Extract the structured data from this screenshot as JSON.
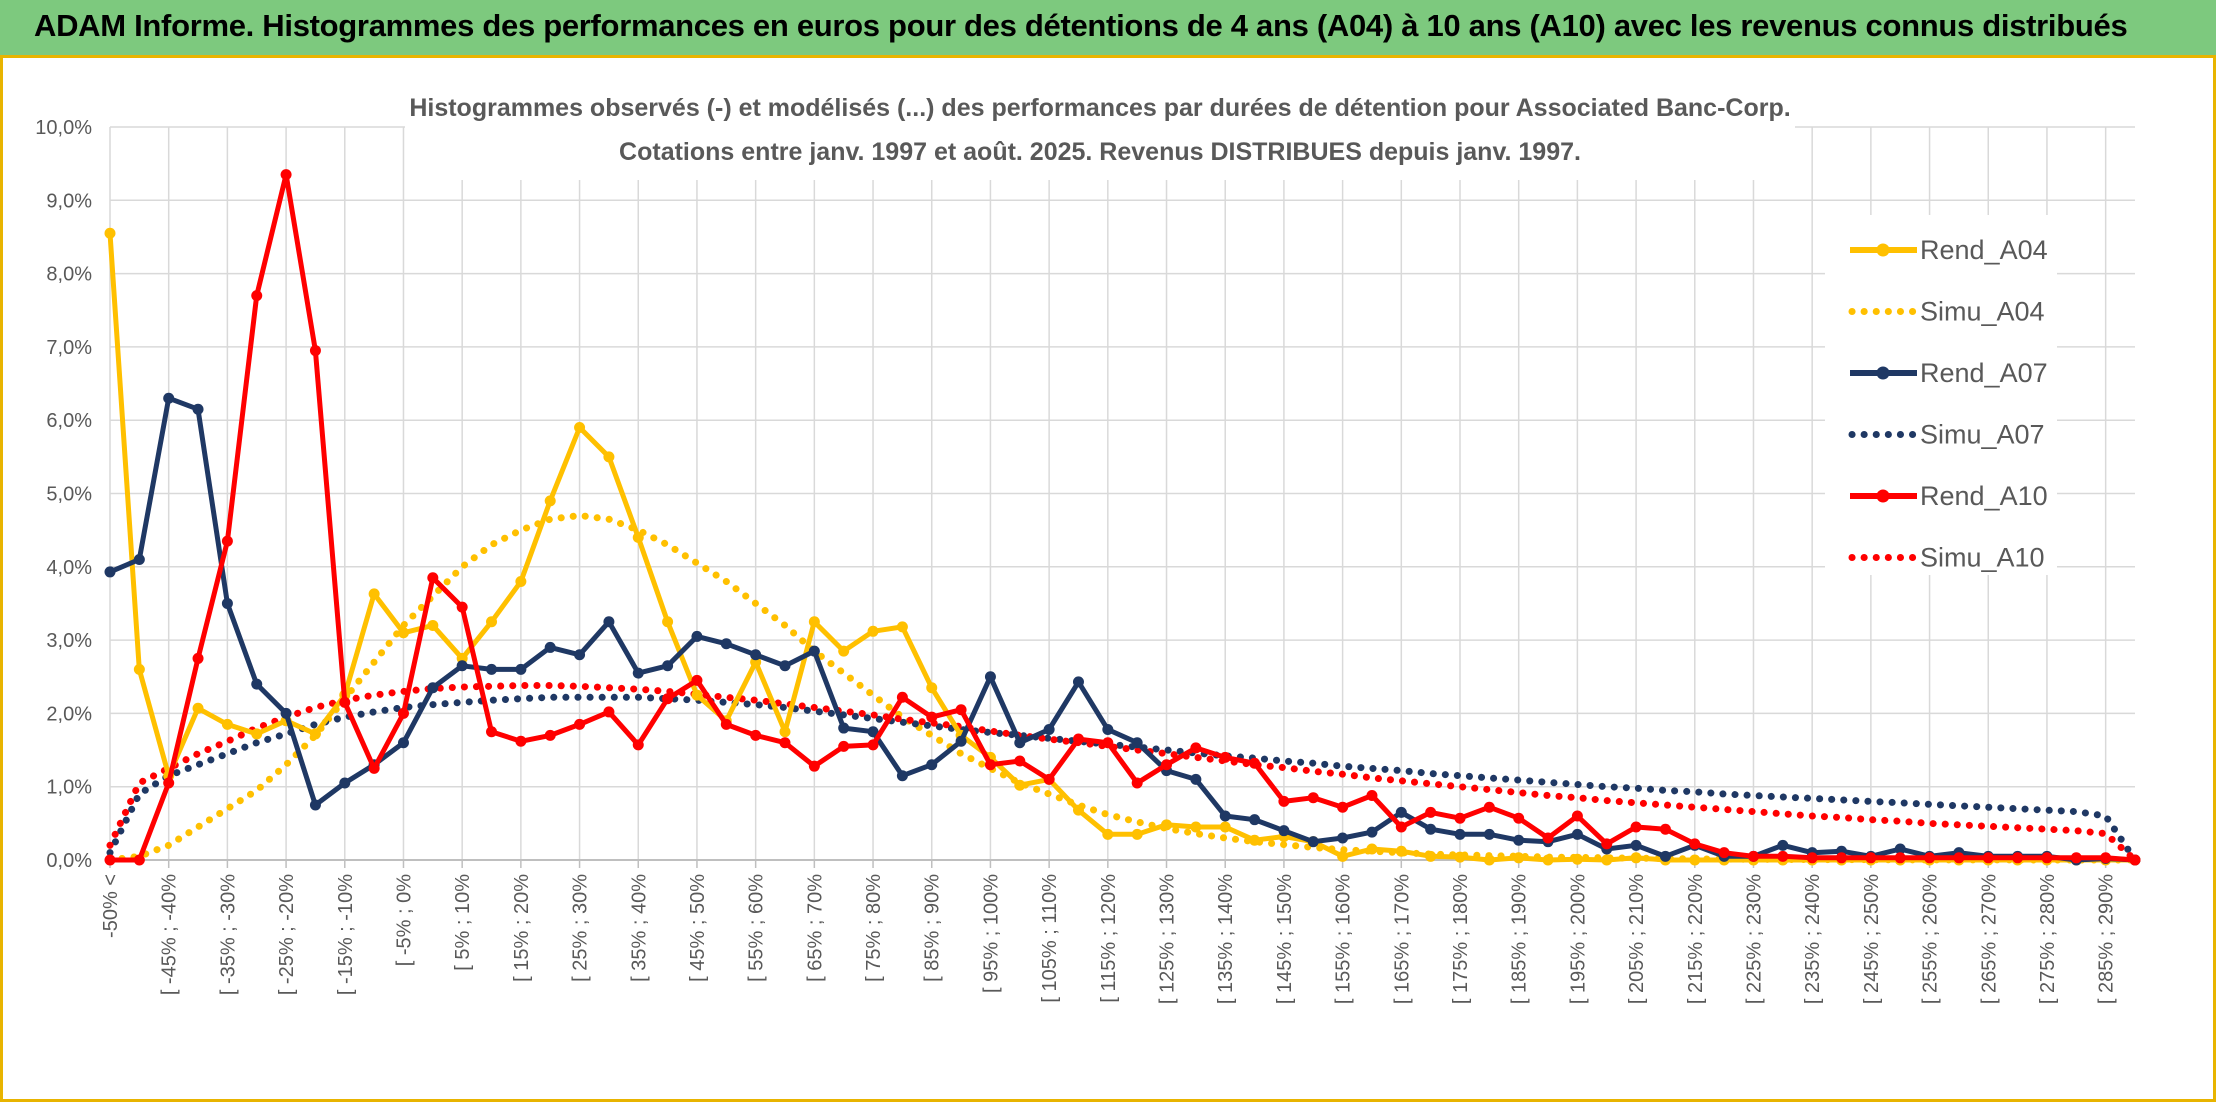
{
  "banner": {
    "title": "ADAM Informe. Histogrammes des performances en euros pour des détentions de 4 ans (A04) à 10 ans (A10) avec les revenus connus distribués"
  },
  "colors": {
    "a04": "#ffc000",
    "a07": "#1f3864",
    "a10": "#ff0000",
    "grid": "#d9d9d9",
    "banner": "#7dc97e",
    "frame": "#e8b400"
  },
  "chart_data": {
    "type": "line",
    "title": "Histogrammes observés (-) et modélisés (...) des performances par durées de détention pour Associated Banc-Corp.",
    "subtitle": "Cotations entre janv. 1997 et août. 2025. Revenus DISTRIBUES depuis janv. 1997.",
    "ylim": [
      0,
      10
    ],
    "y_ticks": [
      "0,0%",
      "1,0%",
      "2,0%",
      "3,0%",
      "4,0%",
      "5,0%",
      "6,0%",
      "7,0%",
      "8,0%",
      "9,0%",
      "10,0%"
    ],
    "grid": true,
    "legend_position": "right",
    "x_tick_labels": [
      "-50% <",
      "[ -45% ; -40%",
      "[ -35% ; -30%",
      "[ -25% ; -20%",
      "[ -15% ; -10%",
      "[ -5% ; 0%",
      "[ 5% ; 10%",
      "[ 15% ; 20%",
      "[ 25% ; 30%",
      "[ 35% ; 40%",
      "[ 45% ; 50%",
      "[ 55% ; 60%",
      "[ 65% ; 70%",
      "[ 75% ; 80%",
      "[ 85% ; 90%",
      "[ 95% ; 100%",
      "[ 105% ; 110%",
      "[ 115% ; 120%",
      "[ 125% ; 130%",
      "[ 135% ; 140%",
      "[ 145% ; 150%",
      "[ 155% ; 160%",
      "[ 165% ; 170%",
      "[ 175% ; 180%",
      "[ 185% ; 190%",
      "[ 195% ; 200%",
      "[ 205% ; 210%",
      "[ 215% ; 220%",
      "[ 225% ; 230%",
      "[ 235% ; 240%",
      "[ 245% ; 250%",
      "[ 255% ; 260%",
      "[ 265% ; 270%",
      "[ 275% ; 280%",
      "[ 285% ; 290%"
    ],
    "series": [
      {
        "name": "Rend_A04",
        "style": "solid",
        "color": "#ffc000",
        "values": [
          8.55,
          2.6,
          1.15,
          2.07,
          1.85,
          1.72,
          1.9,
          1.72,
          2.25,
          3.63,
          3.1,
          3.2,
          2.75,
          3.25,
          3.8,
          4.9,
          5.9,
          5.5,
          4.4,
          3.25,
          2.25,
          1.9,
          2.7,
          1.75,
          3.25,
          2.85,
          3.12,
          3.18,
          2.35,
          1.7,
          1.4,
          1.02,
          1.1,
          0.68,
          0.35,
          0.35,
          0.48,
          0.45,
          0.45,
          0.27,
          0.32,
          0.25,
          0.05,
          0.15,
          0.12,
          0.05,
          0.04,
          0.0,
          0.03,
          0.0,
          0.01,
          0.0,
          0.03,
          0.0,
          0.0,
          0.0,
          0.0,
          0.0,
          0.0,
          0.0,
          0.0,
          0.0,
          0.0,
          0.0,
          0.0,
          0.0,
          0.0,
          0.0,
          0.0,
          0.0
        ]
      },
      {
        "name": "Simu_A04",
        "style": "dotted",
        "color": "#ffc000",
        "values": [
          0.0,
          0.05,
          0.2,
          0.45,
          0.7,
          0.95,
          1.3,
          1.7,
          2.2,
          2.7,
          3.2,
          3.6,
          4.0,
          4.3,
          4.5,
          4.65,
          4.7,
          4.65,
          4.5,
          4.3,
          4.05,
          3.8,
          3.5,
          3.2,
          2.85,
          2.55,
          2.25,
          1.95,
          1.7,
          1.45,
          1.25,
          1.05,
          0.9,
          0.75,
          0.62,
          0.52,
          0.43,
          0.36,
          0.3,
          0.25,
          0.21,
          0.17,
          0.14,
          0.12,
          0.1,
          0.08,
          0.07,
          0.06,
          0.05,
          0.04,
          0.035,
          0.03,
          0.025,
          0.02,
          0.015,
          0.012,
          0.01,
          0.008,
          0.006,
          0.005,
          0.004,
          0.003,
          0.002,
          0.002,
          0.001,
          0.001,
          0.0,
          0.0,
          0.0,
          0.0
        ]
      },
      {
        "name": "Rend_A07",
        "style": "solid",
        "color": "#1f3864",
        "values": [
          3.93,
          4.1,
          6.3,
          6.15,
          3.5,
          2.4,
          2.0,
          0.75,
          1.05,
          1.3,
          1.6,
          2.35,
          2.65,
          2.6,
          2.6,
          2.9,
          2.8,
          3.25,
          2.55,
          2.65,
          3.05,
          2.95,
          2.8,
          2.65,
          2.85,
          1.8,
          1.75,
          1.15,
          1.3,
          1.62,
          2.5,
          1.6,
          1.78,
          2.43,
          1.78,
          1.6,
          1.22,
          1.1,
          0.6,
          0.55,
          0.4,
          0.25,
          0.3,
          0.38,
          0.65,
          0.42,
          0.35,
          0.35,
          0.27,
          0.25,
          0.35,
          0.15,
          0.2,
          0.05,
          0.2,
          0.05,
          0.05,
          0.2,
          0.1,
          0.12,
          0.05,
          0.15,
          0.05,
          0.1,
          0.05,
          0.05,
          0.05,
          0.0,
          0.02,
          0.0
        ]
      },
      {
        "name": "Simu_A07",
        "style": "dotted",
        "color": "#1f3864",
        "values": [
          0.1,
          0.9,
          1.15,
          1.3,
          1.45,
          1.6,
          1.72,
          1.85,
          1.95,
          2.02,
          2.08,
          2.12,
          2.15,
          2.18,
          2.2,
          2.22,
          2.22,
          2.22,
          2.22,
          2.2,
          2.18,
          2.15,
          2.12,
          2.08,
          2.03,
          1.98,
          1.93,
          1.88,
          1.83,
          1.78,
          1.74,
          1.7,
          1.66,
          1.62,
          1.58,
          1.54,
          1.5,
          1.46,
          1.42,
          1.39,
          1.35,
          1.32,
          1.28,
          1.25,
          1.22,
          1.18,
          1.15,
          1.12,
          1.09,
          1.06,
          1.03,
          1.0,
          0.98,
          0.95,
          0.93,
          0.9,
          0.88,
          0.86,
          0.84,
          0.82,
          0.8,
          0.78,
          0.76,
          0.74,
          0.72,
          0.7,
          0.68,
          0.66,
          0.6,
          0.0
        ]
      },
      {
        "name": "Rend_A10",
        "style": "solid",
        "color": "#ff0000",
        "values": [
          0.0,
          0.0,
          1.05,
          2.75,
          4.35,
          7.7,
          9.35,
          6.95,
          2.15,
          1.25,
          2.0,
          3.85,
          3.45,
          1.75,
          1.62,
          1.7,
          1.85,
          2.02,
          1.57,
          2.2,
          2.45,
          1.85,
          1.7,
          1.6,
          1.28,
          1.55,
          1.57,
          2.22,
          1.95,
          2.05,
          1.3,
          1.35,
          1.1,
          1.65,
          1.6,
          1.05,
          1.3,
          1.53,
          1.4,
          1.32,
          0.8,
          0.85,
          0.72,
          0.88,
          0.45,
          0.65,
          0.57,
          0.72,
          0.57,
          0.3,
          0.6,
          0.22,
          0.45,
          0.42,
          0.22,
          0.1,
          0.05,
          0.05,
          0.03,
          0.03,
          0.03,
          0.03,
          0.03,
          0.03,
          0.03,
          0.03,
          0.03,
          0.03,
          0.03,
          0.0
        ]
      },
      {
        "name": "Simu_A10",
        "style": "dotted",
        "color": "#ff0000",
        "values": [
          0.2,
          1.05,
          1.25,
          1.45,
          1.62,
          1.8,
          1.95,
          2.08,
          2.18,
          2.25,
          2.3,
          2.34,
          2.36,
          2.37,
          2.38,
          2.38,
          2.37,
          2.35,
          2.33,
          2.3,
          2.26,
          2.22,
          2.18,
          2.13,
          2.08,
          2.03,
          1.98,
          1.92,
          1.87,
          1.82,
          1.76,
          1.7,
          1.65,
          1.6,
          1.55,
          1.5,
          1.45,
          1.4,
          1.35,
          1.3,
          1.26,
          1.21,
          1.17,
          1.12,
          1.08,
          1.04,
          1.0,
          0.96,
          0.92,
          0.88,
          0.85,
          0.81,
          0.78,
          0.75,
          0.72,
          0.69,
          0.66,
          0.63,
          0.6,
          0.58,
          0.55,
          0.53,
          0.5,
          0.48,
          0.46,
          0.44,
          0.42,
          0.4,
          0.36,
          0.0
        ]
      }
    ]
  }
}
